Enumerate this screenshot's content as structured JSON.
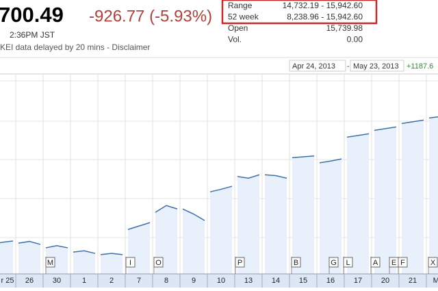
{
  "header": {
    "price": "700.49",
    "change": "-926.77 (-5.93%)",
    "time": "2:36PM JST",
    "note": "KEI data delayed by 20 mins - Disclaimer"
  },
  "stats": [
    {
      "label": "Range",
      "value": "14,732.19 - 15,942.60"
    },
    {
      "label": "52 week",
      "value": "8,238.96 - 15,942.60"
    },
    {
      "label": "Open",
      "value": "15,739.98"
    },
    {
      "label": "Vol.",
      "value": "0.00"
    }
  ],
  "range_bar": {
    "start": "Apr 24, 2013",
    "separator": "-",
    "end": "May 23, 2013",
    "change": "+1187.6"
  },
  "flags": [
    "M",
    "I",
    "O",
    "P",
    "B",
    "G",
    "L",
    "A",
    "E",
    "F",
    "X"
  ],
  "chart_data": {
    "type": "line",
    "ylim": [
      13500,
      16000
    ],
    "categories": [
      "r 25",
      "26",
      "30",
      "1",
      "2",
      "7",
      "8",
      "9",
      "10",
      "13",
      "14",
      "15",
      "16",
      "17",
      "20",
      "21",
      "May"
    ],
    "series": [
      {
        "name": "Nikkei",
        "color": "#3d6fa8",
        "values": [
          [
            13840,
            13870,
            13885
          ],
          [
            13860,
            13880,
            13845
          ],
          [
            13805,
            13830,
            13805
          ],
          [
            13755,
            13770,
            13740
          ],
          [
            13725,
            13740,
            13725
          ],
          [
            14020,
            14060,
            14100
          ],
          [
            14220,
            14300,
            14260
          ],
          [
            14260,
            14200,
            14125
          ],
          [
            14460,
            14490,
            14525
          ],
          [
            14640,
            14620,
            14660
          ],
          [
            14660,
            14650,
            14620
          ],
          [
            14860,
            14870,
            14880
          ],
          [
            14800,
            14820,
            14845
          ],
          [
            15100,
            15120,
            15140
          ],
          [
            15180,
            15200,
            15220
          ],
          [
            15260,
            15280,
            15300
          ],
          [
            15325,
            15340,
            15345
          ]
        ]
      }
    ]
  }
}
